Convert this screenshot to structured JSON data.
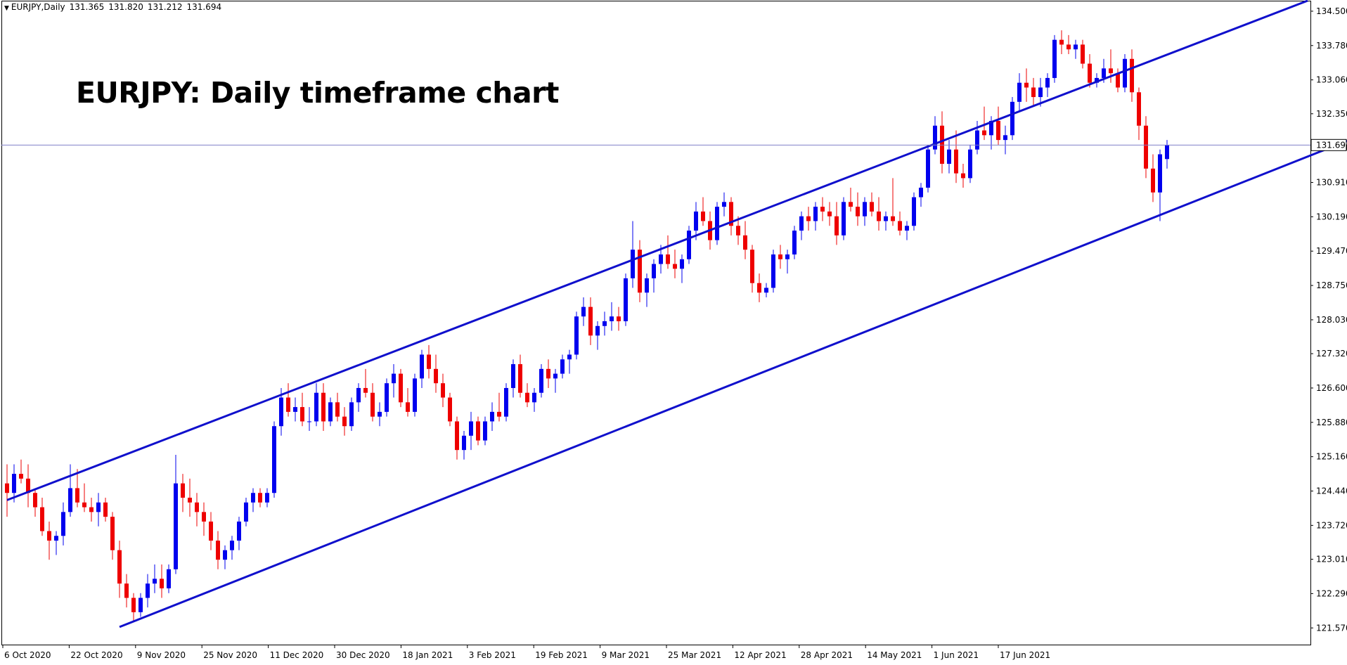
{
  "header": {
    "symbol": "EURJPY,Daily",
    "open": "131.365",
    "high": "131.820",
    "low": "131.212",
    "close": "131.694"
  },
  "chart_data": {
    "type": "candlestick",
    "title": "EURJPY: Daily timeframe chart",
    "current_price": 131.694,
    "current_price_label": "131.694",
    "ylim": [
      121.22,
      134.72
    ],
    "y_ticks": [
      "134.500",
      "133.780",
      "133.060",
      "132.350",
      "131.630",
      "130.910",
      "130.190",
      "129.470",
      "128.750",
      "128.030",
      "127.320",
      "126.600",
      "125.880",
      "125.160",
      "124.440",
      "123.720",
      "123.010",
      "122.290",
      "121.570"
    ],
    "x_ticks": [
      "6 Oct 2020",
      "22 Oct 2020",
      "9 Nov 2020",
      "25 Nov 2020",
      "11 Dec 2020",
      "30 Dec 2020",
      "18 Jan 2021",
      "3 Feb 2021",
      "19 Feb 2021",
      "9 Mar 2021",
      "25 Mar 2021",
      "12 Apr 2021",
      "28 Apr 2021",
      "14 May 2021",
      "1 Jun 2021",
      "17 Jun 2021"
    ],
    "channel_upper": {
      "start": [
        0,
        124.25
      ],
      "end": [
        185,
        134.72
      ]
    },
    "channel_lower": {
      "start": [
        16,
        121.59
      ],
      "end": [
        241,
        134.72
      ]
    },
    "ohlc": [
      [
        124.6,
        125.0,
        123.9,
        124.4
      ],
      [
        124.4,
        125.0,
        124.2,
        124.8
      ],
      [
        124.8,
        125.1,
        124.6,
        124.7
      ],
      [
        124.7,
        125.0,
        124.1,
        124.4
      ],
      [
        124.4,
        124.5,
        123.9,
        124.1
      ],
      [
        124.1,
        124.3,
        123.5,
        123.6
      ],
      [
        123.6,
        123.8,
        123.0,
        123.4
      ],
      [
        123.4,
        123.6,
        123.1,
        123.5
      ],
      [
        123.5,
        124.2,
        123.3,
        124.0
      ],
      [
        124.0,
        125.0,
        123.9,
        124.5
      ],
      [
        124.5,
        124.9,
        124.1,
        124.2
      ],
      [
        124.2,
        124.6,
        124.0,
        124.1
      ],
      [
        124.1,
        124.3,
        123.8,
        124.0
      ],
      [
        124.0,
        124.4,
        123.7,
        124.2
      ],
      [
        124.2,
        124.3,
        123.8,
        123.9
      ],
      [
        123.9,
        124.0,
        123.0,
        123.2
      ],
      [
        123.2,
        123.4,
        122.2,
        122.5
      ],
      [
        122.5,
        122.7,
        122.0,
        122.2
      ],
      [
        122.2,
        122.3,
        121.7,
        121.9
      ],
      [
        121.9,
        122.3,
        121.8,
        122.2
      ],
      [
        122.2,
        122.7,
        122.0,
        122.5
      ],
      [
        122.5,
        122.9,
        122.3,
        122.6
      ],
      [
        122.6,
        122.9,
        122.2,
        122.4
      ],
      [
        122.4,
        122.9,
        122.3,
        122.8
      ],
      [
        122.8,
        125.2,
        122.7,
        124.6
      ],
      [
        124.6,
        124.8,
        124.0,
        124.3
      ],
      [
        124.3,
        124.7,
        123.9,
        124.2
      ],
      [
        124.2,
        124.4,
        123.7,
        124.0
      ],
      [
        124.0,
        124.2,
        123.5,
        123.8
      ],
      [
        123.8,
        124.0,
        123.2,
        123.4
      ],
      [
        123.4,
        123.6,
        122.8,
        123.0
      ],
      [
        123.0,
        123.3,
        122.8,
        123.2
      ],
      [
        123.2,
        123.5,
        123.0,
        123.4
      ],
      [
        123.4,
        123.9,
        123.2,
        123.8
      ],
      [
        123.8,
        124.3,
        123.7,
        124.2
      ],
      [
        124.2,
        124.5,
        124.0,
        124.4
      ],
      [
        124.4,
        124.5,
        124.1,
        124.2
      ],
      [
        124.2,
        124.5,
        124.1,
        124.4
      ],
      [
        124.4,
        125.9,
        124.3,
        125.8
      ],
      [
        125.8,
        126.6,
        125.6,
        126.4
      ],
      [
        126.4,
        126.7,
        126.0,
        126.1
      ],
      [
        126.1,
        126.4,
        125.9,
        126.2
      ],
      [
        126.2,
        126.5,
        125.8,
        125.9
      ],
      [
        125.9,
        126.2,
        125.7,
        125.9
      ],
      [
        125.9,
        126.7,
        125.8,
        126.5
      ],
      [
        126.5,
        126.7,
        125.7,
        125.9
      ],
      [
        125.9,
        126.4,
        125.8,
        126.3
      ],
      [
        126.3,
        126.5,
        125.9,
        126.0
      ],
      [
        126.0,
        126.2,
        125.6,
        125.8
      ],
      [
        125.8,
        126.4,
        125.7,
        126.3
      ],
      [
        126.3,
        126.7,
        126.1,
        126.6
      ],
      [
        126.6,
        127.0,
        126.4,
        126.5
      ],
      [
        126.5,
        126.7,
        125.9,
        126.0
      ],
      [
        126.0,
        126.3,
        125.8,
        126.1
      ],
      [
        126.1,
        126.8,
        126.0,
        126.7
      ],
      [
        126.7,
        127.1,
        126.4,
        126.9
      ],
      [
        126.9,
        127.0,
        126.2,
        126.3
      ],
      [
        126.3,
        126.6,
        126.0,
        126.1
      ],
      [
        126.1,
        126.9,
        126.0,
        126.8
      ],
      [
        126.8,
        127.4,
        126.6,
        127.3
      ],
      [
        127.3,
        127.5,
        126.8,
        127.0
      ],
      [
        127.0,
        127.3,
        126.5,
        126.7
      ],
      [
        126.7,
        126.9,
        126.2,
        126.4
      ],
      [
        126.4,
        126.5,
        125.8,
        125.9
      ],
      [
        125.9,
        126.0,
        125.1,
        125.3
      ],
      [
        125.3,
        125.7,
        125.1,
        125.6
      ],
      [
        125.6,
        126.1,
        125.3,
        125.9
      ],
      [
        125.9,
        126.0,
        125.4,
        125.5
      ],
      [
        125.5,
        126.0,
        125.4,
        125.9
      ],
      [
        125.9,
        126.3,
        125.7,
        126.1
      ],
      [
        126.1,
        126.5,
        125.9,
        126.0
      ],
      [
        126.0,
        126.7,
        125.9,
        126.6
      ],
      [
        126.6,
        127.2,
        126.4,
        127.1
      ],
      [
        127.1,
        127.3,
        126.4,
        126.5
      ],
      [
        126.5,
        126.7,
        126.2,
        126.3
      ],
      [
        126.3,
        126.6,
        126.1,
        126.5
      ],
      [
        126.5,
        127.1,
        126.4,
        127.0
      ],
      [
        127.0,
        127.2,
        126.6,
        126.8
      ],
      [
        126.8,
        127.0,
        126.5,
        126.9
      ],
      [
        126.9,
        127.3,
        126.8,
        127.2
      ],
      [
        127.2,
        127.4,
        126.9,
        127.3
      ],
      [
        127.3,
        128.2,
        127.2,
        128.1
      ],
      [
        128.1,
        128.5,
        127.9,
        128.3
      ],
      [
        128.3,
        128.5,
        127.5,
        127.7
      ],
      [
        127.7,
        128.0,
        127.4,
        127.9
      ],
      [
        127.9,
        128.2,
        127.7,
        128.0
      ],
      [
        128.0,
        128.4,
        127.8,
        128.1
      ],
      [
        128.1,
        128.3,
        127.8,
        128.0
      ],
      [
        128.0,
        129.0,
        127.9,
        128.9
      ],
      [
        128.9,
        130.1,
        128.7,
        129.5
      ],
      [
        129.5,
        129.7,
        128.4,
        128.6
      ],
      [
        128.6,
        129.0,
        128.3,
        128.9
      ],
      [
        128.9,
        129.3,
        128.6,
        129.2
      ],
      [
        129.2,
        129.6,
        129.0,
        129.4
      ],
      [
        129.4,
        129.8,
        129.1,
        129.2
      ],
      [
        129.2,
        129.5,
        128.9,
        129.1
      ],
      [
        129.1,
        129.4,
        128.8,
        129.3
      ],
      [
        129.3,
        130.0,
        129.2,
        129.9
      ],
      [
        129.9,
        130.5,
        129.7,
        130.3
      ],
      [
        130.3,
        130.6,
        130.0,
        130.1
      ],
      [
        130.1,
        130.3,
        129.5,
        129.7
      ],
      [
        129.7,
        130.5,
        129.6,
        130.4
      ],
      [
        130.4,
        130.7,
        130.2,
        130.5
      ],
      [
        130.5,
        130.6,
        129.8,
        130.0
      ],
      [
        130.0,
        130.2,
        129.6,
        129.8
      ],
      [
        129.8,
        130.1,
        129.3,
        129.5
      ],
      [
        129.5,
        129.6,
        128.6,
        128.8
      ],
      [
        128.8,
        129.0,
        128.4,
        128.6
      ],
      [
        128.6,
        128.8,
        128.5,
        128.7
      ],
      [
        128.7,
        129.5,
        128.6,
        129.4
      ],
      [
        129.4,
        129.6,
        129.1,
        129.3
      ],
      [
        129.3,
        129.5,
        129.0,
        129.4
      ],
      [
        129.4,
        130.0,
        129.3,
        129.9
      ],
      [
        129.9,
        130.3,
        129.7,
        130.2
      ],
      [
        130.2,
        130.4,
        129.9,
        130.1
      ],
      [
        130.1,
        130.5,
        129.9,
        130.4
      ],
      [
        130.4,
        130.6,
        130.1,
        130.3
      ],
      [
        130.3,
        130.5,
        130.0,
        130.2
      ],
      [
        130.2,
        130.5,
        129.6,
        129.8
      ],
      [
        129.8,
        130.6,
        129.7,
        130.5
      ],
      [
        130.5,
        130.8,
        130.3,
        130.4
      ],
      [
        130.4,
        130.7,
        130.0,
        130.2
      ],
      [
        130.2,
        130.6,
        130.0,
        130.5
      ],
      [
        130.5,
        130.7,
        130.2,
        130.3
      ],
      [
        130.3,
        130.6,
        129.9,
        130.1
      ],
      [
        130.1,
        130.3,
        129.9,
        130.2
      ],
      [
        130.2,
        131.0,
        130.0,
        130.1
      ],
      [
        130.1,
        130.3,
        129.8,
        129.9
      ],
      [
        129.9,
        130.1,
        129.7,
        130.0
      ],
      [
        130.0,
        130.7,
        129.9,
        130.6
      ],
      [
        130.6,
        130.9,
        130.4,
        130.8
      ],
      [
        130.8,
        131.7,
        130.7,
        131.6
      ],
      [
        131.6,
        132.3,
        131.5,
        132.1
      ],
      [
        132.1,
        132.4,
        131.1,
        131.3
      ],
      [
        131.3,
        131.8,
        131.1,
        131.6
      ],
      [
        131.6,
        132.0,
        130.9,
        131.1
      ],
      [
        131.1,
        131.3,
        130.8,
        131.0
      ],
      [
        131.0,
        131.7,
        130.9,
        131.6
      ],
      [
        131.6,
        132.2,
        131.5,
        132.0
      ],
      [
        132.0,
        132.5,
        131.8,
        131.9
      ],
      [
        131.9,
        132.3,
        131.6,
        132.2
      ],
      [
        132.2,
        132.5,
        131.7,
        131.8
      ],
      [
        131.8,
        132.1,
        131.5,
        131.9
      ],
      [
        131.9,
        132.7,
        131.8,
        132.6
      ],
      [
        132.6,
        133.2,
        132.4,
        133.0
      ],
      [
        133.0,
        133.3,
        132.6,
        132.9
      ],
      [
        132.9,
        133.1,
        132.5,
        132.7
      ],
      [
        132.7,
        133.1,
        132.5,
        132.9
      ],
      [
        132.9,
        133.2,
        132.7,
        133.1
      ],
      [
        133.1,
        134.0,
        133.0,
        133.9
      ],
      [
        133.9,
        134.1,
        133.6,
        133.8
      ],
      [
        133.8,
        134.0,
        133.6,
        133.7
      ],
      [
        133.7,
        133.9,
        133.5,
        133.8
      ],
      [
        133.8,
        133.9,
        133.3,
        133.4
      ],
      [
        133.4,
        133.6,
        132.9,
        133.0
      ],
      [
        133.0,
        133.2,
        132.9,
        133.1
      ],
      [
        133.1,
        133.5,
        133.0,
        133.3
      ],
      [
        133.3,
        133.7,
        133.0,
        133.2
      ],
      [
        133.2,
        133.3,
        132.8,
        132.9
      ],
      [
        132.9,
        133.6,
        132.8,
        133.5
      ],
      [
        133.5,
        133.7,
        132.6,
        132.8
      ],
      [
        132.8,
        132.9,
        131.8,
        132.1
      ],
      [
        132.1,
        132.3,
        131.0,
        131.2
      ],
      [
        131.2,
        131.5,
        130.5,
        130.7
      ],
      [
        130.7,
        131.6,
        130.1,
        131.5
      ],
      [
        131.4,
        131.8,
        131.2,
        131.69
      ]
    ]
  }
}
